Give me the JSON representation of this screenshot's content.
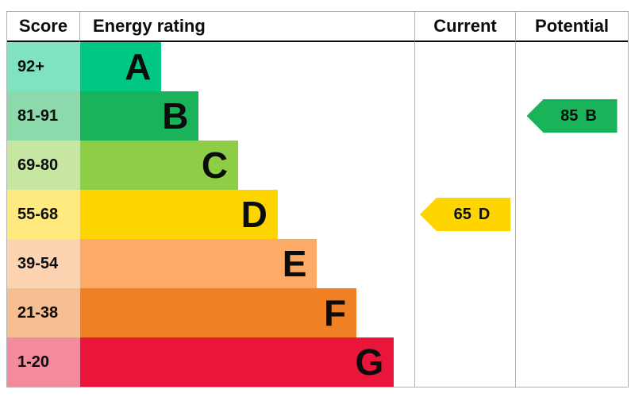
{
  "header": {
    "score": "Score",
    "energy_rating": "Energy rating",
    "current": "Current",
    "potential": "Potential"
  },
  "chart_data": {
    "type": "bar",
    "orientation": "horizontal",
    "title": "Energy rating",
    "categories": [
      "A",
      "B",
      "C",
      "D",
      "E",
      "F",
      "G"
    ],
    "bands": [
      {
        "score_range": "92+",
        "rating": "A",
        "color": "#00c781",
        "tint": "#80e3c0",
        "bar_width_pct": 24.3
      },
      {
        "score_range": "81-91",
        "rating": "B",
        "color": "#19b459",
        "tint": "#8cd9ac",
        "bar_width_pct": 35.5
      },
      {
        "score_range": "69-80",
        "rating": "C",
        "color": "#8dce46",
        "tint": "#c6e6a2",
        "bar_width_pct": 47.3
      },
      {
        "score_range": "55-68",
        "rating": "D",
        "color": "#ffd500",
        "tint": "#ffea80",
        "bar_width_pct": 59.1
      },
      {
        "score_range": "39-54",
        "rating": "E",
        "color": "#fcaa65",
        "tint": "#fdd4b2",
        "bar_width_pct": 70.9
      },
      {
        "score_range": "21-38",
        "rating": "F",
        "color": "#ef8023",
        "tint": "#f7bf91",
        "bar_width_pct": 82.7
      },
      {
        "score_range": "1-20",
        "rating": "G",
        "color": "#e9153b",
        "tint": "#f48a9d",
        "bar_width_pct": 93.9
      }
    ],
    "current": {
      "score": "65",
      "rating": "D",
      "color": "#ffd500",
      "band_index": 3
    },
    "potential": {
      "score": "85",
      "rating": "B",
      "color": "#19b459",
      "band_index": 1
    }
  }
}
